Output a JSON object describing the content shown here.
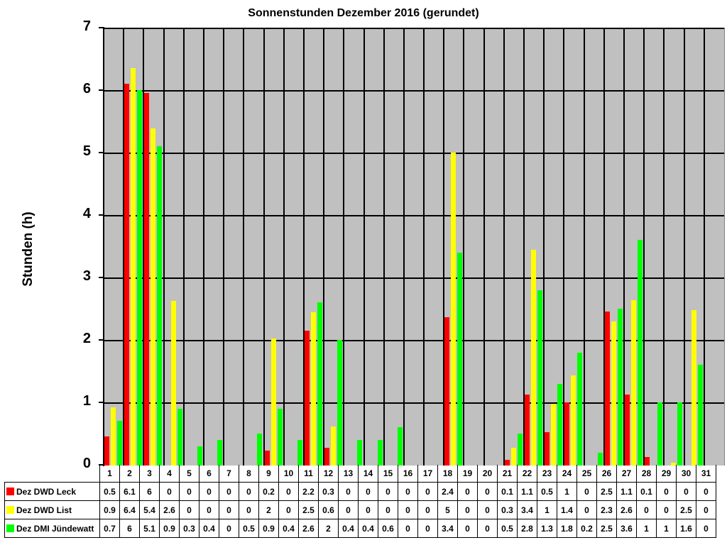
{
  "chart_data": {
    "type": "bar",
    "title": "Sonnenstunden Dezember 2016 (gerundet)",
    "xlabel": "",
    "ylabel": "Stunden (h)",
    "ylim": [
      0,
      7
    ],
    "yticks": [
      "0",
      "1",
      "2",
      "3",
      "4",
      "5",
      "6",
      "7"
    ],
    "grid": true,
    "legend_position": "data-table",
    "categories": [
      "1",
      "2",
      "3",
      "4",
      "5",
      "6",
      "7",
      "8",
      "9",
      "10",
      "11",
      "12",
      "13",
      "14",
      "15",
      "16",
      "17",
      "18",
      "19",
      "20",
      "21",
      "22",
      "23",
      "24",
      "25",
      "26",
      "27",
      "28",
      "29",
      "30",
      "31"
    ],
    "series": [
      {
        "name": "Dez DWD Leck",
        "color": "#ff0000",
        "values": [
          0.5,
          6.1,
          6,
          0,
          0,
          0,
          0,
          0,
          0.2,
          0,
          2.2,
          0.3,
          0,
          0,
          0,
          0,
          0,
          2.4,
          0,
          0,
          0.1,
          1.1,
          0.5,
          1,
          0,
          2.5,
          1.1,
          0.1,
          0,
          0,
          0
        ],
        "bar_heights": [
          0.47,
          6.11,
          5.97,
          0,
          0,
          0,
          0,
          0,
          0.24,
          0,
          2.16,
          0.28,
          0,
          0,
          0,
          0,
          0,
          2.37,
          0,
          0,
          0.09,
          1.14,
          0.53,
          1.01,
          0,
          2.47,
          1.14,
          0.14,
          0,
          0,
          0
        ]
      },
      {
        "name": "Dez DWD List",
        "color": "#ffff00",
        "values": [
          0.9,
          6.4,
          5.4,
          2.6,
          0,
          0,
          0,
          0,
          2,
          0,
          2.5,
          0.6,
          0,
          0,
          0,
          0,
          0,
          5,
          0,
          0,
          0.3,
          3.4,
          1,
          1.4,
          0,
          2.3,
          2.6,
          0,
          0,
          2.5,
          0
        ],
        "bar_heights": [
          0.93,
          6.36,
          5.4,
          2.64,
          0,
          0,
          0,
          0,
          2.03,
          0,
          2.46,
          0.62,
          0,
          0,
          0,
          0,
          0,
          5.01,
          0,
          0,
          0.28,
          3.46,
          0.99,
          1.44,
          0,
          2.31,
          2.65,
          0,
          0.05,
          2.49,
          0
        ]
      },
      {
        "name": "Dez DMI Jündewatt",
        "color": "#00ff00",
        "values": [
          0.7,
          6,
          5.1,
          0.9,
          0.3,
          0.4,
          0,
          0.5,
          0.9,
          0.4,
          2.6,
          2,
          0.4,
          0.4,
          0.6,
          0,
          0,
          3.4,
          0,
          0,
          0.5,
          2.8,
          1.3,
          1.8,
          0.2,
          2.5,
          3.6,
          1,
          1,
          1.6,
          0
        ],
        "bar_heights": [
          0.72,
          6.01,
          5.11,
          0.91,
          0.31,
          0.41,
          0,
          0.51,
          0.91,
          0.41,
          2.61,
          2.01,
          0.41,
          0.41,
          0.61,
          0,
          0,
          3.41,
          0,
          0,
          0.51,
          2.81,
          1.31,
          1.81,
          0.21,
          2.51,
          3.61,
          1.01,
          1.01,
          1.61,
          0
        ]
      }
    ]
  }
}
